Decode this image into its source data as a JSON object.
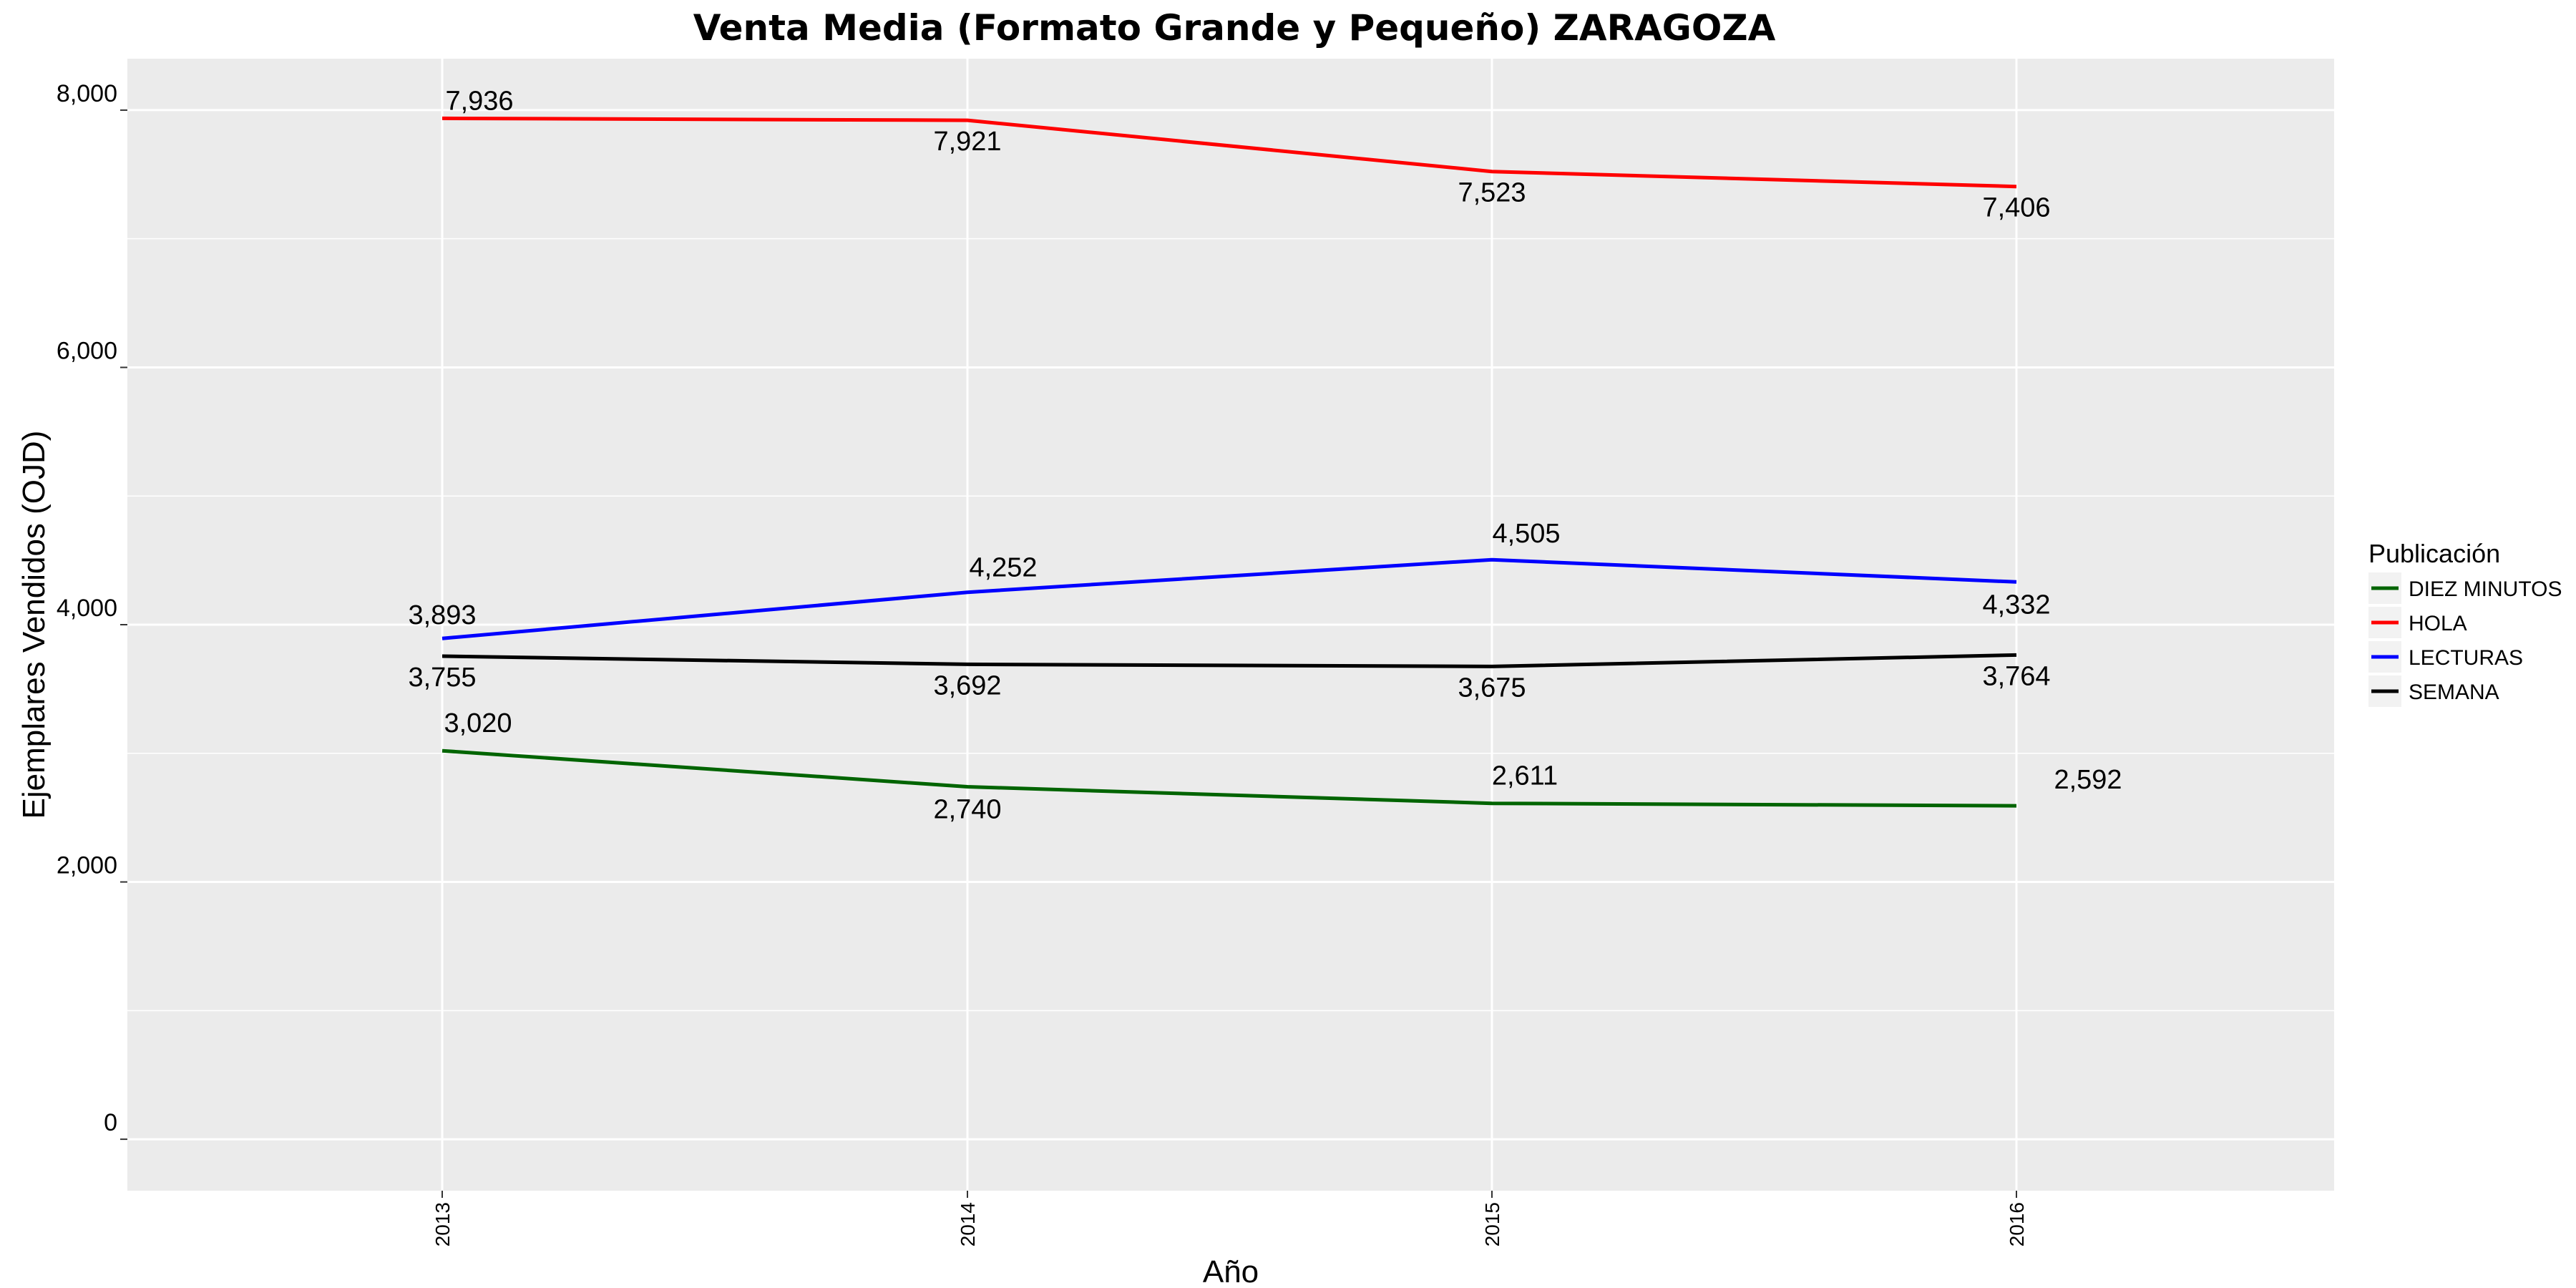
{
  "chart_data": {
    "type": "line",
    "title": "Venta Media (Formato Grande y Pequeño)  ZARAGOZA",
    "xlabel": "Año",
    "ylabel": "Ejemplares Vendidos (OJD)",
    "categories": [
      "2013",
      "2014",
      "2015",
      "2016"
    ],
    "yticks": [
      "0",
      "2,000",
      "4,000",
      "6,000",
      "8,000"
    ],
    "ylim": [
      -400,
      8400
    ],
    "grid": true,
    "legend_position": "right",
    "legend_title": "Publicación",
    "series": [
      {
        "name": "DIEZ MINUTOS",
        "color": "#006400",
        "values": [
          3020,
          2740,
          2611,
          2592
        ],
        "labels": [
          "3,020",
          "2,740",
          "2,611",
          "2,592"
        ]
      },
      {
        "name": "HOLA",
        "color": "#ff0000",
        "values": [
          7936,
          7921,
          7523,
          7406
        ],
        "labels": [
          "7,936",
          "7,921",
          "7,523",
          "7,406"
        ]
      },
      {
        "name": "LECTURAS",
        "color": "#0000ff",
        "values": [
          3893,
          4252,
          4505,
          4332
        ],
        "labels": [
          "3,893",
          "4,252",
          "4,505",
          "4,332"
        ]
      },
      {
        "name": "SEMANA",
        "color": "#000000",
        "values": [
          3755,
          3692,
          3675,
          3764
        ],
        "labels": [
          "3,755",
          "3,692",
          "3,675",
          "3,764"
        ]
      }
    ],
    "panel_background": "#ebebeb",
    "gridline_color": "#ffffff"
  }
}
